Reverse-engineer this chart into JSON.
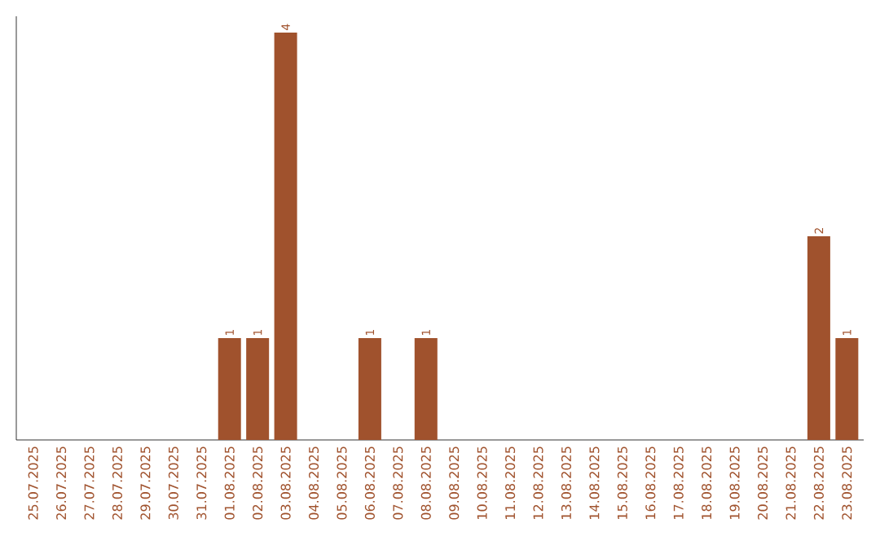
{
  "chart_data": {
    "type": "bar",
    "categories": [
      "25.07.2025",
      "26.07.2025",
      "27.07.2025",
      "28.07.2025",
      "29.07.2025",
      "30.07.2025",
      "31.07.2025",
      "01.08.2025",
      "02.08.2025",
      "03.08.2025",
      "04.08.2025",
      "05.08.2025",
      "06.08.2025",
      "07.08.2025",
      "08.08.2025",
      "09.08.2025",
      "10.08.2025",
      "11.08.2025",
      "12.08.2025",
      "13.08.2025",
      "14.08.2025",
      "15.08.2025",
      "16.08.2025",
      "17.08.2025",
      "18.08.2025",
      "19.08.2025",
      "20.08.2025",
      "21.08.2025",
      "22.08.2025",
      "23.08.2025"
    ],
    "values": [
      0,
      0,
      0,
      0,
      0,
      0,
      0,
      1,
      1,
      4,
      0,
      0,
      1,
      0,
      1,
      0,
      0,
      0,
      0,
      0,
      0,
      0,
      0,
      0,
      0,
      0,
      0,
      0,
      2,
      1
    ],
    "value_labels": [
      null,
      null,
      null,
      null,
      null,
      null,
      null,
      "1",
      "1",
      "4",
      null,
      null,
      "1",
      null,
      "1",
      null,
      null,
      null,
      null,
      null,
      null,
      null,
      null,
      null,
      null,
      null,
      null,
      null,
      "2",
      "1"
    ],
    "color": "#a0522d"
  }
}
